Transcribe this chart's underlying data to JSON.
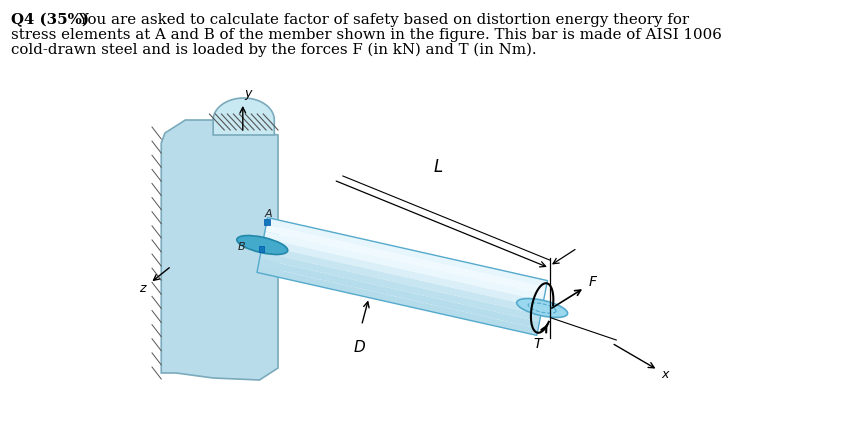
{
  "bg_color": "#ffffff",
  "text_color": "#000000",
  "lines": [
    "stress elements at A and B of the member shown in the figure. This bar is made of AISI 1006",
    "cold-drawn steel and is loaded by the forces F (in kN) and T (in Nm)."
  ],
  "line1_bold": "Q4 (35%)",
  "line1_rest": " You are asked to calculate factor of safety based on distortion energy theory for",
  "label_A": "A",
  "label_B": "B",
  "label_D": "D",
  "label_L": "L",
  "label_F": "F",
  "label_T": "T",
  "label_x": "x",
  "label_y": "y",
  "label_z": "z",
  "wall_fc": "#b8dcea",
  "wall_ec": "#7aaabb",
  "bar_light": "#cceeff",
  "bar_mid": "#99ddff",
  "bar_dark": "#66bbdd",
  "bar_ec": "#55aacc",
  "end_fc": "#aaddee",
  "hatch_color": "#555555",
  "arrow_color": "#000000"
}
